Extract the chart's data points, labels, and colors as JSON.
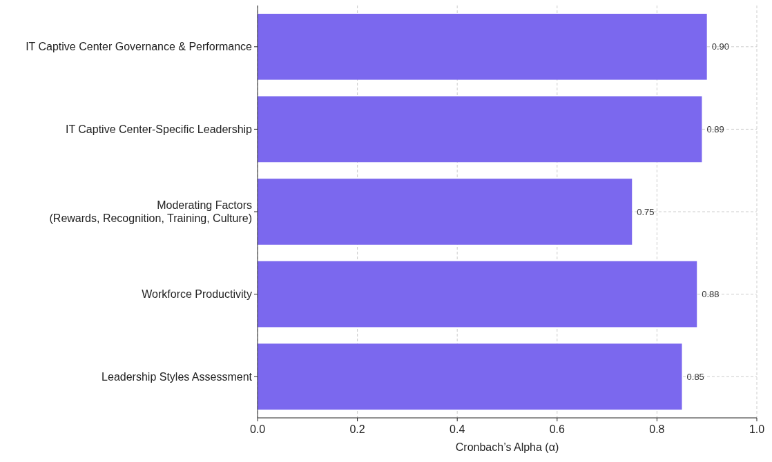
{
  "chart_data": {
    "type": "bar",
    "orientation": "horizontal",
    "xlabel": "Cronbach’s Alpha (α)",
    "categories": [
      "IT Captive Center Governance & Performance",
      "IT Captive Center-Specific Leadership",
      "Moderating Factors\n(Rewards, Recognition, Training, Culture)",
      "Workforce Productivity",
      "Leadership Styles Assessment"
    ],
    "values": [
      0.9,
      0.89,
      0.75,
      0.88,
      0.85
    ],
    "value_labels": [
      "0.90",
      "0.89",
      "0.75",
      "0.88",
      "0.85"
    ],
    "color": "#7b68ee",
    "xlim": [
      0,
      1.0
    ],
    "xticks": [
      {
        "value": 0,
        "label": "0.0"
      },
      {
        "value": 0.2,
        "label": "0.2"
      },
      {
        "value": 0.4,
        "label": "0.4"
      },
      {
        "value": 0.6,
        "label": "0.6"
      },
      {
        "value": 0.8,
        "label": "0.8"
      },
      {
        "value": 1.0,
        "label": "1.0"
      }
    ],
    "grid": true
  }
}
